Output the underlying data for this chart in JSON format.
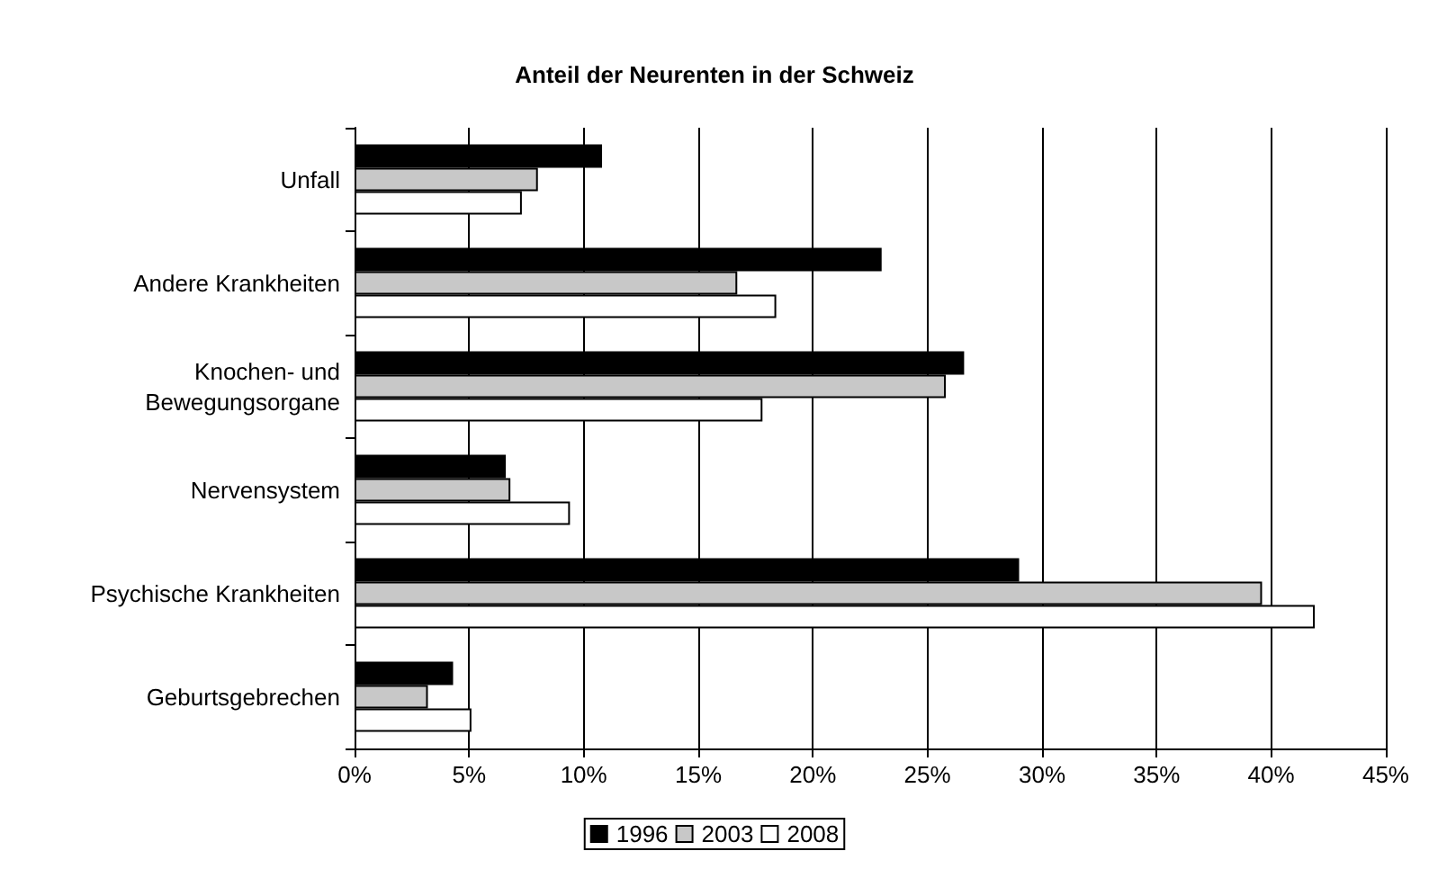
{
  "chart_data": {
    "type": "bar",
    "orientation": "horizontal",
    "title": "Anteil der Neurenten in der Schweiz",
    "categories": [
      "Unfall",
      "Andere Krankheiten",
      "Knochen- und\nBewegungsorgane",
      "Nervensystem",
      "Psychische Krankheiten",
      "Geburtsgebrechen"
    ],
    "series": [
      {
        "name": "1996",
        "color": "#000000",
        "values": [
          10.8,
          23.0,
          26.6,
          6.6,
          29.0,
          4.3
        ]
      },
      {
        "name": "2003",
        "color": "#c8c8c8",
        "values": [
          8.0,
          16.7,
          25.8,
          6.8,
          39.6,
          3.2
        ]
      },
      {
        "name": "2008",
        "color": "#ffffff",
        "values": [
          7.3,
          18.4,
          17.8,
          9.4,
          41.9,
          5.1
        ]
      }
    ],
    "xlim": [
      0,
      45
    ],
    "xticks": [
      {
        "value": 0,
        "label": "0%"
      },
      {
        "value": 5,
        "label": "5%"
      },
      {
        "value": 10,
        "label": "10%"
      },
      {
        "value": 15,
        "label": "15%"
      },
      {
        "value": 20,
        "label": "20%"
      },
      {
        "value": 25,
        "label": "25%"
      },
      {
        "value": 30,
        "label": "30%"
      },
      {
        "value": 35,
        "label": "35%"
      },
      {
        "value": 40,
        "label": "40%"
      },
      {
        "value": 45,
        "label": "45%"
      }
    ],
    "grid": "x",
    "legend": "bottom"
  }
}
